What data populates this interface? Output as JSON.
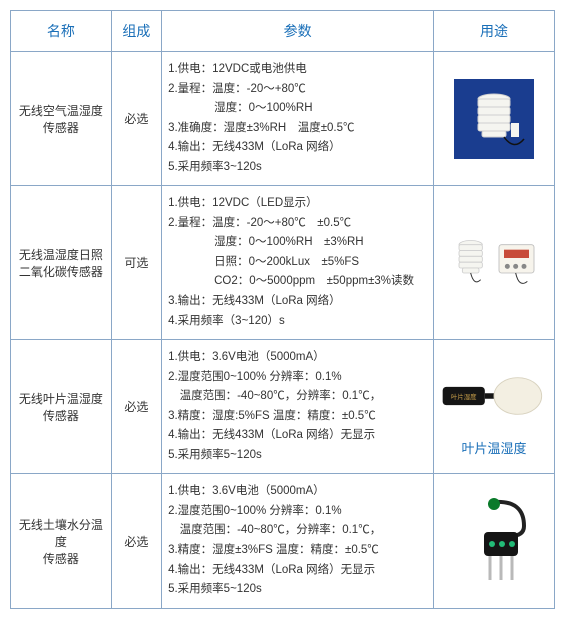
{
  "headers": {
    "name": "名称",
    "composition": "组成",
    "params": "参数",
    "use": "用途"
  },
  "rows": [
    {
      "name": "无线空气温湿度\n传感器",
      "comp": "必选",
      "params": "1.供电：12VDC或电池供电\n2.量程：温度：-20～+80℃\n　　　　湿度：0～100%RH\n3.准确度：湿度±3%RH　温度±0.5℃\n4.输出：无线433M（LoRa 网络）\n5.采用频率3~120s",
      "icon": "air-sensor",
      "caption": ""
    },
    {
      "name": "无线温湿度日照\n二氧化碳传感器",
      "comp": "可选",
      "params": "1.供电：12VDC（LED显示）\n2.量程：温度：-20～+80℃　±0.5℃\n　　　　湿度：0～100%RH　±3%RH\n　　　　日照：0～200kLux　±5%FS\n　　　　CO2：0～5000ppm　±50ppm±3%读数\n3.输出：无线433M（LoRa 网络）\n4.采用频率（3~120）s",
      "icon": "multi-sensor",
      "caption": ""
    },
    {
      "name": "无线叶片温湿度\n传感器",
      "comp": "必选",
      "params": "1.供电：3.6V电池（5000mA）\n2.湿度范围0~100%  分辨率：0.1%\n　温度范围：-40~80℃，分辨率：0.1℃，\n3.精度：湿度:5%FS 温度：精度：±0.5℃\n4.输出：无线433M（LoRa 网络）无显示\n5.采用频率5~120s",
      "icon": "leaf-sensor",
      "caption": "叶片温湿度"
    },
    {
      "name": "无线土壤水分温度\n传感器",
      "comp": "必选",
      "params": "1.供电：3.6V电池（5000mA）\n2.湿度范围0~100%  分辨率：0.1%\n　温度范围：-40~80℃，分辨率：0.1℃，\n3.精度：湿度±3%FS 温度：精度：±0.5℃\n4.输出：无线433M（LoRa 网络）无显示\n5.采用频率5~120s",
      "icon": "soil-sensor",
      "caption": ""
    }
  ],
  "colors": {
    "border": "#8aa7c7",
    "header_text": "#1a6fb8",
    "caption_text": "#1a6fb8"
  }
}
